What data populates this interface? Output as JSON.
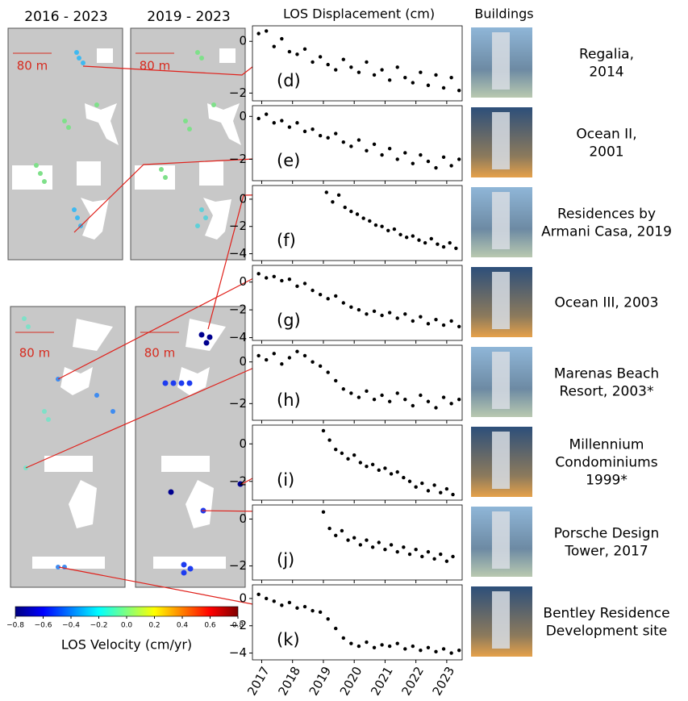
{
  "header": {
    "displacement_title": "LOS Displacement (cm)",
    "buildings_title": "Buildings"
  },
  "maps": {
    "titles": [
      "2016 - 2023",
      "2019 - 2023"
    ],
    "scale_label": "80 m"
  },
  "buildings": [
    {
      "lines": [
        "Regalia,",
        "2014"
      ]
    },
    {
      "lines": [
        "Ocean II,",
        "2001"
      ]
    },
    {
      "lines": [
        "Residences by",
        "Armani Casa, 2019"
      ]
    },
    {
      "lines": [
        "Ocean III, 2003"
      ]
    },
    {
      "lines": [
        "Marenas Beach",
        "Resort, 2003*"
      ]
    },
    {
      "lines": [
        "Millennium",
        "Condominiums",
        "1999*"
      ]
    },
    {
      "lines": [
        "Porsche Design",
        "Tower, 2017"
      ]
    },
    {
      "lines": [
        "Bentley Residence",
        "Development site"
      ]
    }
  ],
  "chart_data": [
    {
      "type": "scatter",
      "label": "(d)",
      "color": "#000000",
      "xlim": [
        2016.7,
        2023.5
      ],
      "xticks": [
        2017,
        2018,
        2019,
        2020,
        2021,
        2022,
        2023
      ],
      "ylim": [
        -2.3,
        0.6
      ],
      "yticks": [
        {
          "value": 0,
          "label": "0"
        },
        {
          "value": -2,
          "label": "−2"
        }
      ],
      "x": [
        2016.9,
        2017.15,
        2017.4,
        2017.65,
        2017.9,
        2018.15,
        2018.4,
        2018.65,
        2018.9,
        2019.15,
        2019.4,
        2019.65,
        2019.9,
        2020.15,
        2020.4,
        2020.65,
        2020.9,
        2021.15,
        2021.4,
        2021.65,
        2021.9,
        2022.15,
        2022.4,
        2022.65,
        2022.9,
        2023.15,
        2023.4
      ],
      "values": [
        0.3,
        0.4,
        -0.2,
        0.1,
        -0.4,
        -0.5,
        -0.3,
        -0.8,
        -0.6,
        -0.9,
        -1.1,
        -0.7,
        -1.0,
        -1.2,
        -0.8,
        -1.3,
        -1.1,
        -1.5,
        -1.0,
        -1.4,
        -1.6,
        -1.2,
        -1.7,
        -1.3,
        -1.8,
        -1.4,
        -1.9
      ]
    },
    {
      "type": "scatter",
      "label": "(e)",
      "color": "#000000",
      "xlim": [
        2016.7,
        2023.5
      ],
      "xticks": [
        2017,
        2018,
        2019,
        2020,
        2021,
        2022,
        2023
      ],
      "ylim": [
        -3,
        0.5
      ],
      "yticks": [
        {
          "value": 0,
          "label": "0"
        },
        {
          "value": -2,
          "label": "−2"
        }
      ],
      "x": [
        2016.9,
        2017.15,
        2017.4,
        2017.65,
        2017.9,
        2018.15,
        2018.4,
        2018.65,
        2018.9,
        2019.15,
        2019.4,
        2019.65,
        2019.9,
        2020.15,
        2020.4,
        2020.65,
        2020.9,
        2021.15,
        2021.4,
        2021.65,
        2021.9,
        2022.15,
        2022.4,
        2022.65,
        2022.9,
        2023.15,
        2023.4
      ],
      "values": [
        -0.1,
        0.1,
        -0.3,
        -0.2,
        -0.5,
        -0.3,
        -0.7,
        -0.6,
        -0.9,
        -1.0,
        -0.8,
        -1.2,
        -1.4,
        -1.1,
        -1.6,
        -1.3,
        -1.8,
        -1.5,
        -2.0,
        -1.7,
        -2.2,
        -1.8,
        -2.1,
        -2.4,
        -1.9,
        -2.3,
        -2.0
      ]
    },
    {
      "type": "scatter",
      "label": "(f)",
      "color": "#000000",
      "xlim": [
        2016.7,
        2023.5
      ],
      "xticks": [
        2017,
        2018,
        2019,
        2020,
        2021,
        2022,
        2023
      ],
      "ylim": [
        -4.5,
        1
      ],
      "yticks": [
        {
          "value": 0,
          "label": "0"
        },
        {
          "value": -2,
          "label": "−2"
        },
        {
          "value": -4,
          "label": "−4"
        }
      ],
      "x": [
        2019.1,
        2019.3,
        2019.5,
        2019.7,
        2019.9,
        2020.1,
        2020.3,
        2020.5,
        2020.7,
        2020.9,
        2021.1,
        2021.3,
        2021.5,
        2021.7,
        2021.9,
        2022.1,
        2022.3,
        2022.5,
        2022.7,
        2022.9,
        2023.1,
        2023.3
      ],
      "values": [
        0.5,
        -0.2,
        0.3,
        -0.6,
        -0.9,
        -1.1,
        -1.4,
        -1.6,
        -1.9,
        -2.0,
        -2.3,
        -2.2,
        -2.6,
        -2.8,
        -2.7,
        -3.0,
        -3.2,
        -2.9,
        -3.3,
        -3.5,
        -3.2,
        -3.6
      ]
    },
    {
      "type": "scatter",
      "label": "(g)",
      "color": "#000000",
      "xlim": [
        2016.7,
        2023.5
      ],
      "xticks": [
        2017,
        2018,
        2019,
        2020,
        2021,
        2022,
        2023
      ],
      "ylim": [
        -4.2,
        1.2
      ],
      "yticks": [
        {
          "value": 0,
          "label": "0"
        },
        {
          "value": -2,
          "label": "−2"
        },
        {
          "value": -4,
          "label": "−4"
        }
      ],
      "x": [
        2016.9,
        2017.15,
        2017.4,
        2017.65,
        2017.9,
        2018.15,
        2018.4,
        2018.65,
        2018.9,
        2019.15,
        2019.4,
        2019.65,
        2019.9,
        2020.15,
        2020.4,
        2020.65,
        2020.9,
        2021.15,
        2021.4,
        2021.65,
        2021.9,
        2022.15,
        2022.4,
        2022.65,
        2022.9,
        2023.15,
        2023.4
      ],
      "values": [
        0.6,
        0.3,
        0.4,
        0.1,
        0.2,
        -0.3,
        -0.1,
        -0.6,
        -0.9,
        -1.2,
        -1.0,
        -1.5,
        -1.8,
        -2.0,
        -2.3,
        -2.1,
        -2.4,
        -2.2,
        -2.6,
        -2.3,
        -2.8,
        -2.5,
        -3.0,
        -2.7,
        -3.1,
        -2.8,
        -3.2
      ]
    },
    {
      "type": "scatter",
      "label": "(h)",
      "color": "#000000",
      "xlim": [
        2016.7,
        2023.5
      ],
      "xticks": [
        2017,
        2018,
        2019,
        2020,
        2021,
        2022,
        2023
      ],
      "ylim": [
        -2.8,
        0.8
      ],
      "yticks": [
        {
          "value": 0,
          "label": "0"
        },
        {
          "value": -2,
          "label": "−2"
        }
      ],
      "x": [
        2016.9,
        2017.15,
        2017.4,
        2017.65,
        2017.9,
        2018.15,
        2018.4,
        2018.65,
        2018.9,
        2019.15,
        2019.4,
        2019.65,
        2019.9,
        2020.15,
        2020.4,
        2020.65,
        2020.9,
        2021.15,
        2021.4,
        2021.65,
        2021.9,
        2022.15,
        2022.4,
        2022.65,
        2022.9,
        2023.15,
        2023.4
      ],
      "values": [
        0.3,
        0.1,
        0.4,
        -0.1,
        0.2,
        0.5,
        0.3,
        0.0,
        -0.2,
        -0.5,
        -0.9,
        -1.3,
        -1.5,
        -1.7,
        -1.4,
        -1.8,
        -1.6,
        -1.9,
        -1.5,
        -1.8,
        -2.1,
        -1.6,
        -1.9,
        -2.2,
        -1.7,
        -2.0,
        -1.8
      ]
    },
    {
      "type": "scatter",
      "label": "(i)",
      "color": "#000000",
      "xlim": [
        2016.7,
        2023.5
      ],
      "xticks": [
        2017,
        2018,
        2019,
        2020,
        2021,
        2022,
        2023
      ],
      "ylim": [
        -3,
        1
      ],
      "yticks": [
        {
          "value": 0,
          "label": "0"
        },
        {
          "value": -2,
          "label": "−2"
        }
      ],
      "x": [
        2019.0,
        2019.2,
        2019.4,
        2019.6,
        2019.8,
        2020.0,
        2020.2,
        2020.4,
        2020.6,
        2020.8,
        2021.0,
        2021.2,
        2021.4,
        2021.6,
        2021.8,
        2022.0,
        2022.2,
        2022.4,
        2022.6,
        2022.8,
        2023.0,
        2023.2
      ],
      "values": [
        0.7,
        0.2,
        -0.3,
        -0.5,
        -0.8,
        -0.6,
        -1.0,
        -1.2,
        -1.1,
        -1.4,
        -1.3,
        -1.6,
        -1.5,
        -1.8,
        -2.0,
        -2.3,
        -2.1,
        -2.5,
        -2.2,
        -2.6,
        -2.4,
        -2.7
      ]
    },
    {
      "type": "scatter",
      "label": "(j)",
      "color": "#000000",
      "xlim": [
        2016.7,
        2023.5
      ],
      "xticks": [
        2017,
        2018,
        2019,
        2020,
        2021,
        2022,
        2023
      ],
      "ylim": [
        -2.6,
        0.6
      ],
      "yticks": [
        {
          "value": 0,
          "label": "0"
        },
        {
          "value": -2,
          "label": "−2"
        }
      ],
      "x": [
        2019.0,
        2019.2,
        2019.4,
        2019.6,
        2019.8,
        2020.0,
        2020.2,
        2020.4,
        2020.6,
        2020.8,
        2021.0,
        2021.2,
        2021.4,
        2021.6,
        2021.8,
        2022.0,
        2022.2,
        2022.4,
        2022.6,
        2022.8,
        2023.0,
        2023.2
      ],
      "values": [
        0.3,
        -0.4,
        -0.7,
        -0.5,
        -0.9,
        -0.8,
        -1.1,
        -0.9,
        -1.2,
        -1.0,
        -1.3,
        -1.1,
        -1.4,
        -1.2,
        -1.5,
        -1.3,
        -1.6,
        -1.4,
        -1.7,
        -1.5,
        -1.8,
        -1.6
      ]
    },
    {
      "type": "scatter",
      "label": "(k)",
      "color": "#000000",
      "xlim": [
        2016.7,
        2023.5
      ],
      "xticks": [
        2017,
        2018,
        2019,
        2020,
        2021,
        2022,
        2023
      ],
      "ylim": [
        -4.5,
        1
      ],
      "yticks": [
        {
          "value": 0,
          "label": "0"
        },
        {
          "value": -2,
          "label": "−2"
        },
        {
          "value": -4,
          "label": "−4"
        }
      ],
      "x": [
        2016.9,
        2017.15,
        2017.4,
        2017.65,
        2017.9,
        2018.15,
        2018.4,
        2018.65,
        2018.9,
        2019.15,
        2019.4,
        2019.65,
        2019.9,
        2020.15,
        2020.4,
        2020.65,
        2020.9,
        2021.15,
        2021.4,
        2021.65,
        2021.9,
        2022.15,
        2022.4,
        2022.65,
        2022.9,
        2023.15,
        2023.4
      ],
      "values": [
        0.3,
        0.0,
        -0.2,
        -0.5,
        -0.3,
        -0.7,
        -0.6,
        -0.9,
        -1.0,
        -1.5,
        -2.2,
        -2.9,
        -3.3,
        -3.5,
        -3.2,
        -3.6,
        -3.4,
        -3.5,
        -3.3,
        -3.7,
        -3.5,
        -3.8,
        -3.6,
        -3.9,
        -3.7,
        -4.0,
        -3.8
      ]
    },
    {
      "type": "colorbar",
      "title": "LOS Velocity (cm/yr)",
      "colormap": "jet",
      "xlim": [
        -0.8,
        0.8
      ],
      "xticks": [
        {
          "value": -0.8,
          "label": "−0.8"
        },
        {
          "value": -0.6,
          "label": "−0.6"
        },
        {
          "value": -0.4,
          "label": "−0.4"
        },
        {
          "value": -0.2,
          "label": "−0.2"
        },
        {
          "value": 0,
          "label": "0.0"
        },
        0.2,
        0.4,
        0.6,
        0.8
      ]
    }
  ]
}
